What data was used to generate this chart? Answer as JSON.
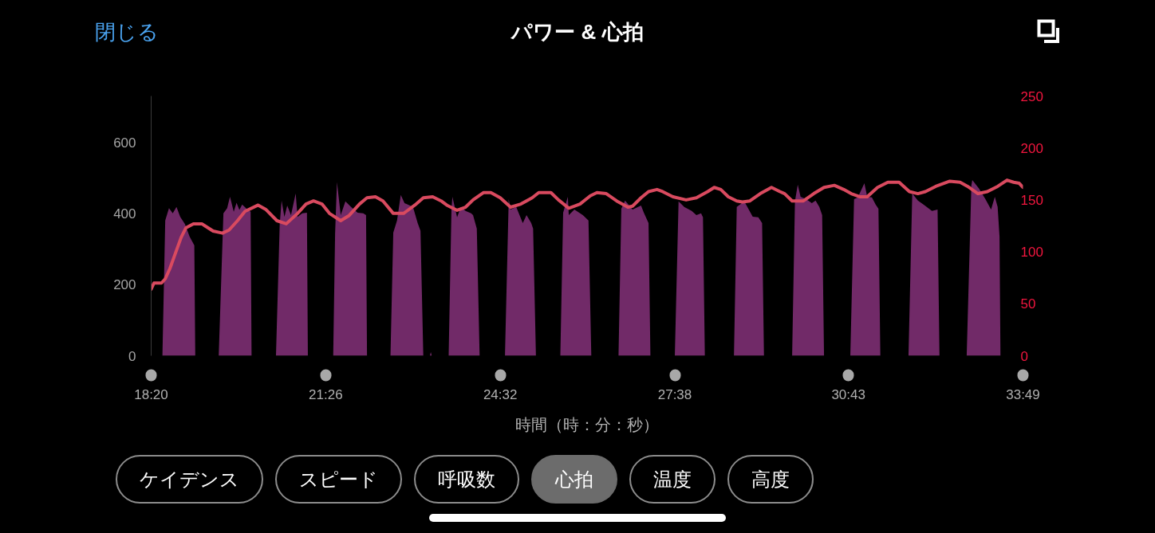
{
  "chart_data": {
    "type": "area",
    "title": "パワー & 心拍",
    "xlabel": "時間（時：分：秒）",
    "xlim": [
      1100,
      2029
    ],
    "xticks": [
      {
        "value": 1100,
        "label": "18:20"
      },
      {
        "value": 1286,
        "label": "21:26"
      },
      {
        "value": 1472,
        "label": "24:32"
      },
      {
        "value": 1658,
        "label": "27:38"
      },
      {
        "value": 1843,
        "label": "30:43"
      },
      {
        "value": 2029,
        "label": "33:49"
      }
    ],
    "ylim": [
      0,
      730
    ],
    "yticks": [
      0,
      200,
      400,
      600
    ],
    "y2lim": [
      0,
      250
    ],
    "y2ticks": [
      0,
      50,
      100,
      150,
      200,
      250
    ],
    "grid": false,
    "series": [
      {
        "color": "#712a68",
        "x": [
          1112,
          1115,
          1119,
          1123,
          1127,
          1131,
          1136,
          1141,
          1146,
          1147,
          1172,
          1177,
          1181,
          1184,
          1188,
          1191,
          1194,
          1197,
          1201,
          1206,
          1207,
          1233,
          1237,
          1239,
          1242,
          1245,
          1249,
          1254,
          1256,
          1261,
          1266,
          1267,
          1294,
          1296,
          1298,
          1302,
          1307,
          1313,
          1320,
          1326,
          1329,
          1330,
          1355,
          1358,
          1362,
          1366,
          1370,
          1379,
          1384,
          1387,
          1390,
          1397,
          1398,
          1399,
          1417,
          1420,
          1421,
          1426,
          1430,
          1435,
          1441,
          1443,
          1447,
          1450,
          1477,
          1481,
          1483,
          1489,
          1496,
          1500,
          1505,
          1507,
          1510,
          1536,
          1539,
          1544,
          1545,
          1551,
          1560,
          1566,
          1569,
          1598,
          1601,
          1605,
          1613,
          1622,
          1625,
          1630,
          1632,
          1658,
          1662,
          1668,
          1676,
          1681,
          1686,
          1688,
          1690,
          1721,
          1724,
          1732,
          1741,
          1747,
          1751,
          1753,
          1783,
          1786,
          1789,
          1792,
          1798,
          1804,
          1808,
          1812,
          1815,
          1817,
          1845,
          1849,
          1853,
          1860,
          1863,
          1868,
          1872,
          1875,
          1877,
          1907,
          1911,
          1917,
          1923,
          1932,
          1938,
          1940,
          1969,
          1974,
          1975,
          1982,
          1989,
          1995,
          1999,
          2002,
          2004,
          2005
        ],
        "values": [
          0,
          380,
          415,
          400,
          418,
          390,
          370,
          335,
          310,
          0,
          0,
          400,
          415,
          447,
          405,
          430,
          410,
          425,
          415,
          405,
          0,
          0,
          370,
          436,
          390,
          422,
          395,
          456,
          390,
          400,
          402,
          0,
          0,
          344,
          488,
          395,
          434,
          418,
          402,
          400,
          395,
          0,
          0,
          346,
          380,
          452,
          429,
          418,
          373,
          351,
          0,
          0,
          10,
          0,
          0,
          411,
          447,
          389,
          418,
          407,
          400,
          395,
          357,
          0,
          0,
          440,
          411,
          418,
          373,
          395,
          373,
          357,
          0,
          0,
          402,
          447,
          395,
          411,
          395,
          380,
          0,
          0,
          413,
          436,
          411,
          422,
          402,
          373,
          0,
          0,
          434,
          418,
          407,
          395,
          400,
          389,
          0,
          0,
          418,
          434,
          391,
          389,
          373,
          0,
          0,
          434,
          481,
          447,
          440,
          429,
          436,
          418,
          395,
          0,
          0,
          440,
          445,
          485,
          447,
          445,
          425,
          413,
          0,
          0,
          456,
          436,
          425,
          407,
          411,
          0,
          0,
          479,
          494,
          470,
          440,
          411,
          447,
          418,
          335,
          0
        ]
      },
      {
        "type": "line",
        "axis": "y2",
        "color": "#d94a5f",
        "x": [
          1100,
          1103,
          1111,
          1115,
          1120,
          1126,
          1132,
          1137,
          1145,
          1154,
          1166,
          1176,
          1183,
          1192,
          1200,
          1214,
          1222,
          1234,
          1244,
          1256,
          1265,
          1273,
          1282,
          1290,
          1302,
          1311,
          1322,
          1330,
          1339,
          1347,
          1358,
          1369,
          1381,
          1390,
          1400,
          1409,
          1415,
          1426,
          1435,
          1443,
          1454,
          1462,
          1472,
          1483,
          1494,
          1506,
          1513,
          1526,
          1534,
          1545,
          1557,
          1568,
          1575,
          1585,
          1596,
          1608,
          1613,
          1622,
          1630,
          1639,
          1645,
          1656,
          1670,
          1681,
          1693,
          1700,
          1707,
          1715,
          1724,
          1730,
          1738,
          1749,
          1761,
          1770,
          1775,
          1783,
          1795,
          1806,
          1817,
          1828,
          1838,
          1846,
          1855,
          1863,
          1874,
          1885,
          1897,
          1908,
          1917,
          1925,
          1936,
          1951,
          1962,
          1970,
          1981,
          1991,
          2002,
          2012,
          2019,
          2025,
          2029
        ],
        "values": [
          64,
          70,
          70,
          74,
          84,
          99,
          114,
          123,
          127,
          127,
          120,
          118,
          121,
          130,
          139,
          145,
          141,
          130,
          127,
          137,
          146,
          149,
          146,
          137,
          130,
          135,
          146,
          152,
          153,
          149,
          137,
          137,
          145,
          152,
          153,
          149,
          145,
          140,
          143,
          150,
          157,
          157,
          152,
          143,
          146,
          152,
          157,
          157,
          150,
          142,
          146,
          154,
          157,
          156,
          149,
          143,
          144,
          152,
          158,
          160,
          158,
          153,
          150,
          152,
          158,
          162,
          160,
          153,
          149,
          148,
          149,
          156,
          162,
          158,
          156,
          149,
          149,
          156,
          162,
          164,
          160,
          156,
          153,
          153,
          162,
          167,
          167,
          158,
          156,
          158,
          163,
          168,
          167,
          163,
          156,
          158,
          163,
          169,
          167,
          166,
          162
        ]
      }
    ],
    "annotations": [
      "閉じる",
      "ケイデンス",
      "スピード",
      "呼吸数",
      "心拍",
      "温度",
      "高度"
    ]
  }
}
